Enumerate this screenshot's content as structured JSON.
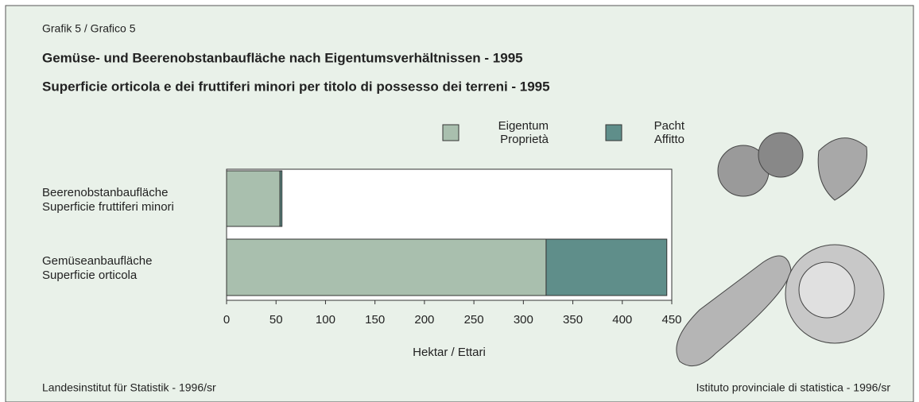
{
  "chart_data": {
    "type": "bar",
    "orientation": "horizontal",
    "stacked": true,
    "label": "Grafik 5 / Grafico 5",
    "title": "Gemüse- und Beerenobstanbaufläche nach Eigentumsverhältnissen - 1995",
    "subtitle": "Superficie orticola e dei fruttiferi minori per titolo di possesso dei terreni - 1995",
    "categories": [
      [
        "Beerenobstanbaufläche",
        "Superficie fruttiferi minori"
      ],
      [
        "Gemüseanbaufläche",
        "Superficie orticola"
      ]
    ],
    "series": [
      {
        "name": [
          "Eigentum",
          "Proprietà"
        ],
        "color": "#a9bfae",
        "values": [
          54,
          323
        ]
      },
      {
        "name": [
          "Pacht",
          "Affitto"
        ],
        "color": "#5f8e8a",
        "values": [
          2,
          122
        ]
      }
    ],
    "xlabel": "Hektar / Ettari",
    "xlim": [
      0,
      450
    ],
    "xticks": [
      0,
      50,
      100,
      150,
      200,
      250,
      300,
      350,
      400,
      450
    ],
    "source_left": "Landesinstitut für Statistik - 1996/sr",
    "source_right": "Istituto provinciale di statistica - 1996/sr"
  }
}
